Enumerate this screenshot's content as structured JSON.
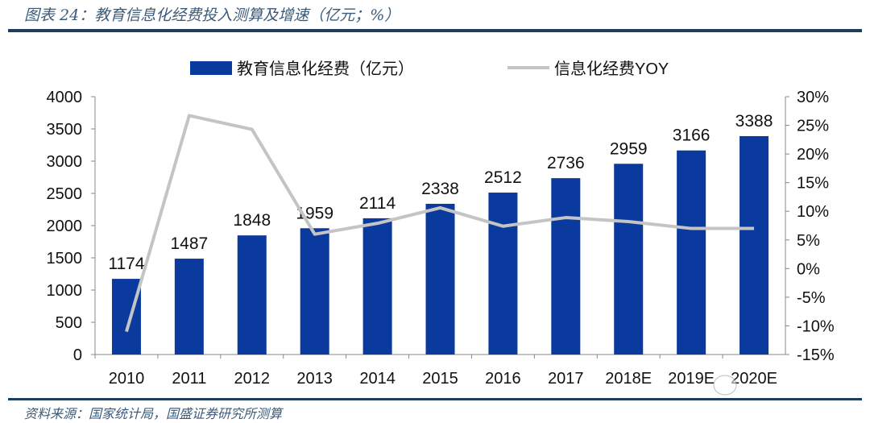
{
  "title": "图表 24：教育信息化经费投入测算及增速（亿元；%）",
  "source": "资料来源：国家统计局，国盛证券研究所测算",
  "colors": {
    "bar": "#0b3a9e",
    "line": "#c4c4c4",
    "title": "#3b5b7a",
    "rule": "#1f3d5c"
  },
  "chart_data": {
    "type": "bar+line",
    "categories": [
      "2010",
      "2011",
      "2012",
      "2013",
      "2014",
      "2015",
      "2016",
      "2017",
      "2018E",
      "2019E",
      "2020E"
    ],
    "series": [
      {
        "name": "教育信息化经费（亿元）",
        "type": "bar",
        "axis": "left",
        "values": [
          1174,
          1487,
          1848,
          1959,
          2114,
          2338,
          2512,
          2736,
          2959,
          3166,
          3388
        ],
        "labels": [
          "1174",
          "1487",
          "1848",
          "1959",
          "2114",
          "2338",
          "2512",
          "2736",
          "2959",
          "3166",
          "3388"
        ]
      },
      {
        "name": "信息化经费YOY",
        "type": "line",
        "axis": "right",
        "values": [
          -11.0,
          26.7,
          24.3,
          6.0,
          7.9,
          10.6,
          7.4,
          8.9,
          8.2,
          7.0,
          7.0
        ]
      }
    ],
    "y_left": {
      "range": [
        0,
        4000
      ],
      "ticks": [
        "0",
        "500",
        "1000",
        "1500",
        "2000",
        "2500",
        "3000",
        "3500",
        "4000"
      ]
    },
    "y_right": {
      "range": [
        -15,
        30
      ],
      "ticks": [
        "-15%",
        "-10%",
        "-5%",
        "0%",
        "5%",
        "10%",
        "15%",
        "20%",
        "25%",
        "30%"
      ]
    },
    "grid": false,
    "legend": "top"
  }
}
